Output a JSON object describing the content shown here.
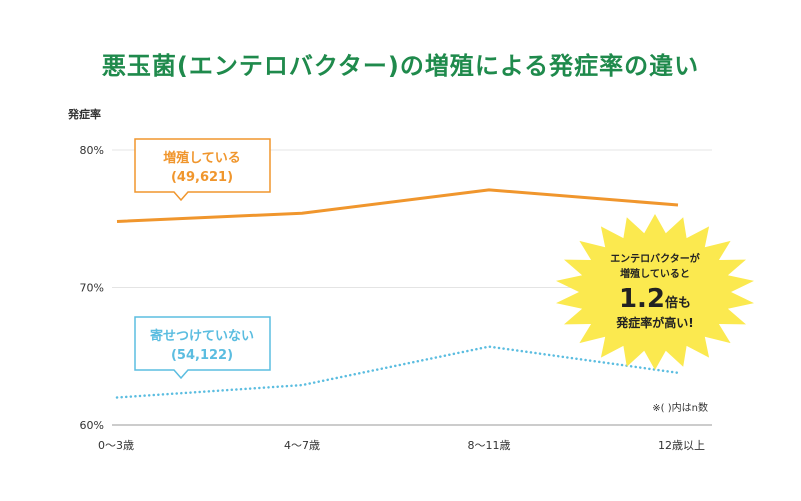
{
  "title": "悪玉菌(エンテロバクター)の増殖による発症率の違い",
  "note": "※( )内はn数",
  "callouts": {
    "orange": {
      "line1": "増殖している",
      "line2": "(49,621)"
    },
    "blue": {
      "line1": "寄せつけていない",
      "line2": "(54,122)"
    }
  },
  "burst": {
    "line1": "エンテロバクターが",
    "line2": "増殖していると",
    "big": "1.2",
    "big_suffix": "倍も",
    "line4": "発症率が高い!"
  },
  "colors": {
    "title": "#1f8a4c",
    "orange": "#f0962d",
    "blue": "#5bbde0",
    "burst": "#fbe94f",
    "grid": "#e4e4e4",
    "axis": "#999999"
  },
  "chart_data": {
    "type": "line",
    "ylabel": "発症率",
    "xlabel": "",
    "categories": [
      "0〜3歳",
      "4〜7歳",
      "8〜11歳",
      "12歳以上"
    ],
    "ylim": [
      60,
      80
    ],
    "yticks": [
      60,
      70,
      80
    ],
    "ytick_labels": [
      "60%",
      "70%",
      "80%"
    ],
    "grid": true,
    "series": [
      {
        "name": "増殖している",
        "n": "49,621",
        "style": "solid",
        "values": [
          74.8,
          75.4,
          77.1,
          76.0
        ]
      },
      {
        "name": "寄せつけていない",
        "n": "54,122",
        "style": "dotted",
        "values": [
          62.0,
          62.9,
          65.7,
          63.8
        ]
      }
    ]
  }
}
